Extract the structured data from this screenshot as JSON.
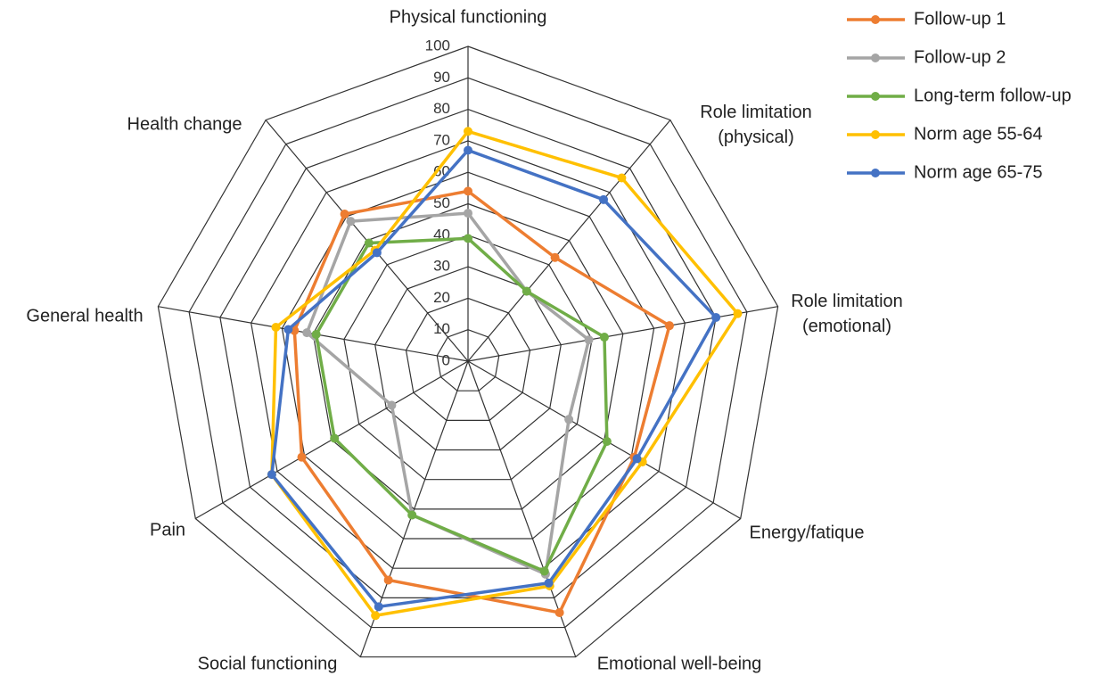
{
  "chart_data": {
    "type": "radar",
    "categories": [
      "Physical functioning",
      "Role limitation (physical)",
      "Role limitation (emotional)",
      "Energy/fatique",
      "Emotional well-being",
      "Social functioning",
      "Pain",
      "General health",
      "Health change"
    ],
    "rlim": [
      0,
      100
    ],
    "rticks": [
      0,
      10,
      20,
      30,
      40,
      50,
      60,
      70,
      80,
      90,
      100
    ],
    "grid": true,
    "legend": "top-right",
    "series": [
      {
        "name": "Follow-up 1",
        "color": "#ed7d31",
        "values": [
          54,
          43,
          65,
          61,
          85,
          74,
          61,
          56,
          61
        ]
      },
      {
        "name": "Follow-up 2",
        "color": "#a5a5a5",
        "values": [
          47,
          29,
          39,
          37,
          72,
          52,
          28,
          52,
          58
        ]
      },
      {
        "name": "Long-term follow-up",
        "color": "#70ad47",
        "values": [
          39,
          29,
          44,
          51,
          71,
          52,
          49,
          49,
          49
        ]
      },
      {
        "name": "Norm age 55-64",
        "color": "#ffc000",
        "values": [
          73,
          76,
          87,
          64,
          76,
          86,
          72,
          62,
          46
        ]
      },
      {
        "name": "Norm age 65-75",
        "color": "#4472c4",
        "values": [
          67,
          67,
          80,
          62,
          75,
          83,
          72,
          58,
          45
        ]
      }
    ]
  }
}
